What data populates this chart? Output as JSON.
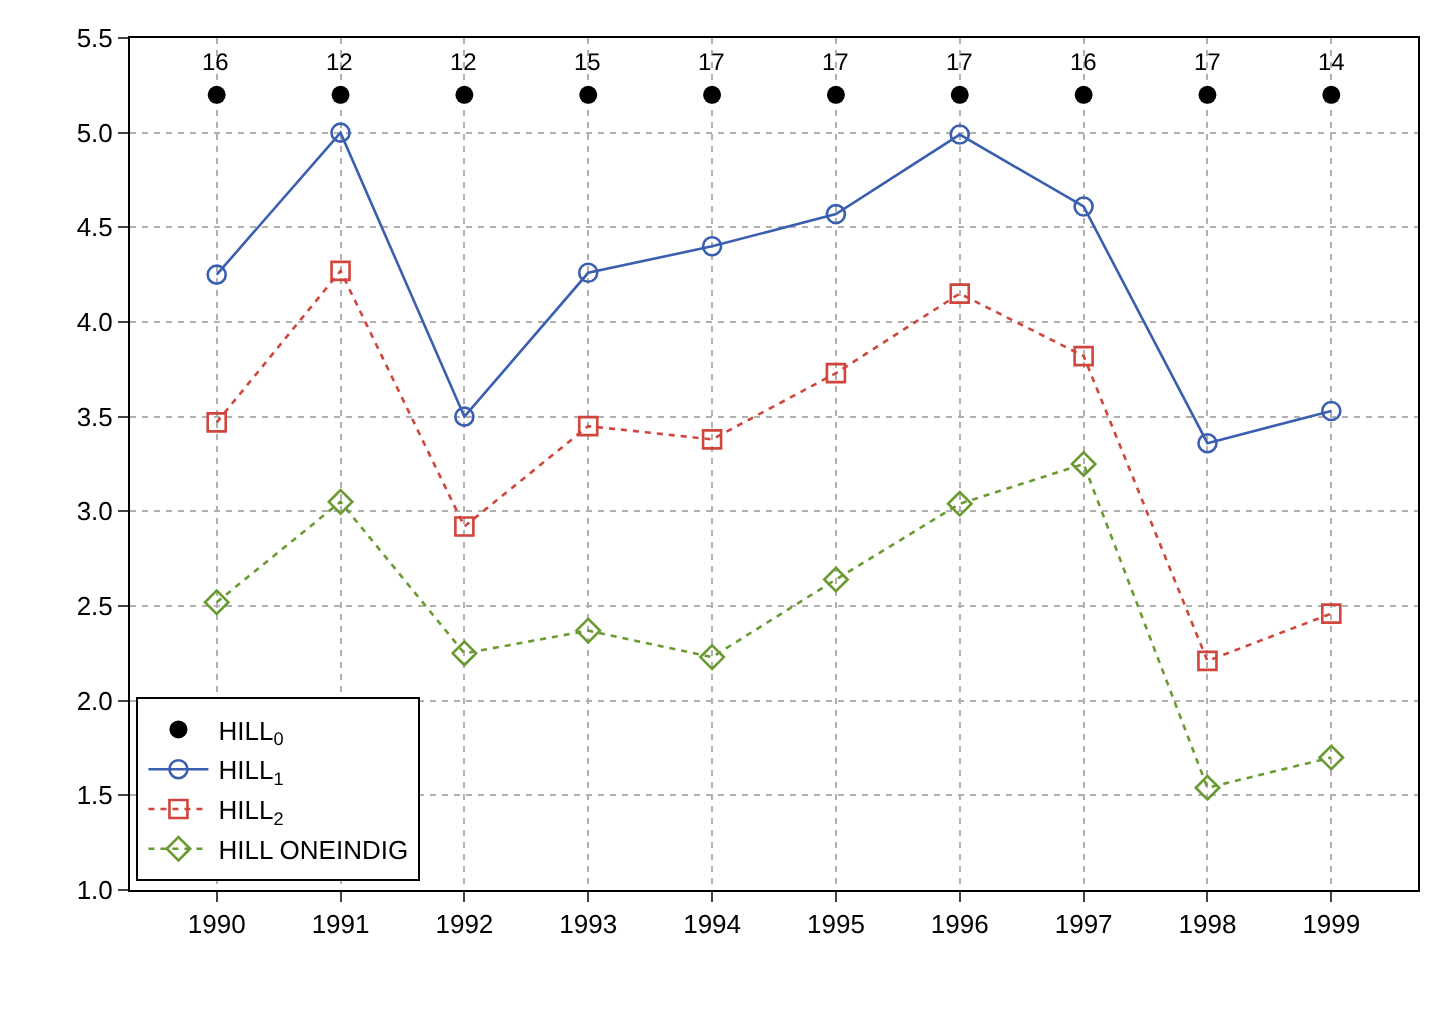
{
  "chart_data": {
    "type": "line",
    "categories": [
      "1990",
      "1991",
      "1992",
      "1993",
      "1994",
      "1995",
      "1996",
      "1997",
      "1998",
      "1999"
    ],
    "series": [
      {
        "name": "HILL$_{0}$",
        "type": "scatter",
        "color": "#000000",
        "marker": "circle",
        "values": [
          5.2,
          5.2,
          5.2,
          5.2,
          5.2,
          5.2,
          5.2,
          5.2,
          5.2,
          5.2
        ]
      },
      {
        "name": "HILL$_{1}$",
        "color": "#3a5fb0",
        "marker": "circle",
        "line_style": "solid",
        "values": [
          4.25,
          5.0,
          3.5,
          4.26,
          4.4,
          4.57,
          4.99,
          4.61,
          3.36,
          3.53
        ]
      },
      {
        "name": "HILL$_{2}$",
        "color": "#d0463c",
        "marker": "square",
        "line_style": "dotted",
        "values": [
          3.47,
          4.27,
          2.92,
          3.45,
          3.38,
          3.73,
          4.15,
          3.82,
          2.21,
          2.46
        ]
      },
      {
        "name": "HILL ONEINDIG",
        "color": "#6a9a32",
        "marker": "diamond",
        "line_style": "dotted",
        "values": [
          2.52,
          3.05,
          2.25,
          2.37,
          2.23,
          2.64,
          3.04,
          3.25,
          1.54,
          1.7
        ]
      }
    ],
    "annotations": [
      {
        "text": "16",
        "x": "1990",
        "y": 5.2
      },
      {
        "text": "12",
        "x": "1991",
        "y": 5.2
      },
      {
        "text": "12",
        "x": "1992",
        "y": 5.2
      },
      {
        "text": "15",
        "x": "1993",
        "y": 5.2
      },
      {
        "text": "17",
        "x": "1994",
        "y": 5.2
      },
      {
        "text": "17",
        "x": "1995",
        "y": 5.2
      },
      {
        "text": "17",
        "x": "1996",
        "y": 5.2
      },
      {
        "text": "16",
        "x": "1997",
        "y": 5.2
      },
      {
        "text": "17",
        "x": "1998",
        "y": 5.2
      },
      {
        "text": "14",
        "x": "1999",
        "y": 5.2
      }
    ],
    "ylim": [
      1.0,
      5.5
    ],
    "yticks": [
      {
        "value": 1.0,
        "label": "1.0"
      },
      {
        "value": 1.5,
        "label": "1.5"
      },
      {
        "value": 2.0,
        "label": "2.0"
      },
      {
        "value": 2.5,
        "label": "2.5"
      },
      {
        "value": 3.0,
        "label": "3.0"
      },
      {
        "value": 3.5,
        "label": "3.5"
      },
      {
        "value": 4.0,
        "label": "4.0"
      },
      {
        "value": 4.5,
        "label": "4.5"
      },
      {
        "value": 5.0,
        "label": "5.0"
      },
      {
        "value": 5.5,
        "label": "5.5"
      }
    ],
    "grid": true,
    "legend": "bottom left"
  }
}
